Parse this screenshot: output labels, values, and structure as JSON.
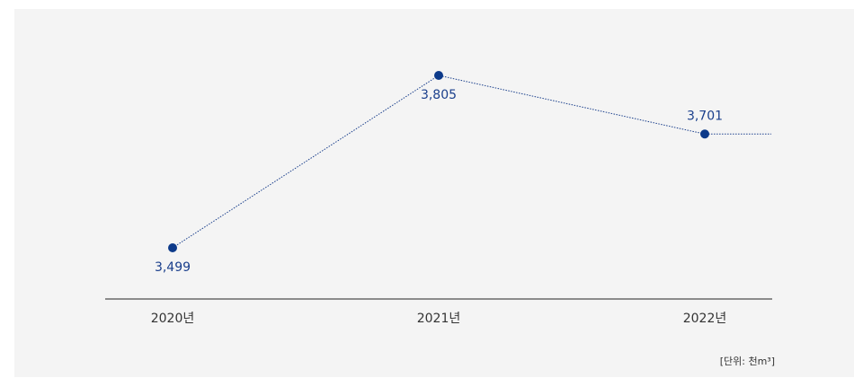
{
  "colors": {
    "line": "#1a3f8c",
    "point": "#0d3a8a",
    "axis": "#222222",
    "panel": "#f4f4f4"
  },
  "unit": "[단위: 천m³]",
  "chart_data": {
    "type": "line",
    "categories": [
      "2020년",
      "2021년",
      "2022년"
    ],
    "series": [
      {
        "values": [
          3499,
          3805,
          3701
        ],
        "labels": [
          "3,499",
          "3,805",
          "3,701"
        ]
      }
    ],
    "ylim": [
      3300,
      3900
    ],
    "grid": false,
    "line_style": "dotted",
    "extends_past_last_point": true
  }
}
